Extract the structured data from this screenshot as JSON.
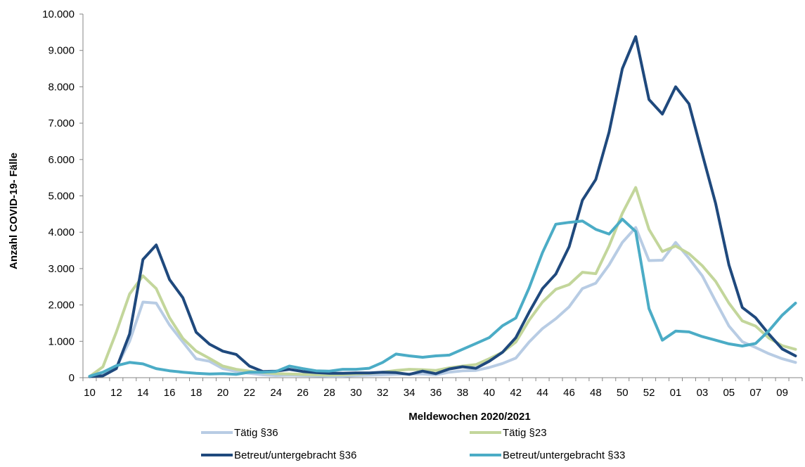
{
  "chart_data": {
    "type": "line",
    "title": "",
    "xlabel": "Meldewochen 2020/2021",
    "ylabel": "Anzahl COVID-19- Fälle",
    "ylim": [
      0,
      10000
    ],
    "y_ticks": [
      "0",
      "1.000",
      "2.000",
      "3.000",
      "4.000",
      "5.000",
      "6.000",
      "7.000",
      "8.000",
      "9.000",
      "10.000"
    ],
    "x_tick_labels": [
      "10",
      "12",
      "14",
      "16",
      "18",
      "20",
      "22",
      "24",
      "26",
      "28",
      "30",
      "32",
      "34",
      "36",
      "38",
      "40",
      "42",
      "44",
      "46",
      "48",
      "50",
      "52",
      "01",
      "03",
      "05",
      "07",
      "09"
    ],
    "x": [
      "10",
      "11",
      "12",
      "13",
      "14",
      "15",
      "16",
      "17",
      "18",
      "19",
      "20",
      "21",
      "22",
      "23",
      "24",
      "25",
      "26",
      "27",
      "28",
      "29",
      "30",
      "31",
      "32",
      "33",
      "34",
      "35",
      "36",
      "37",
      "38",
      "39",
      "40",
      "41",
      "42",
      "43",
      "44",
      "45",
      "46",
      "47",
      "48",
      "49",
      "50",
      "51",
      "52",
      "53",
      "01",
      "02",
      "03",
      "04",
      "05",
      "06",
      "07",
      "08",
      "09",
      "10"
    ],
    "grid": false,
    "legend_position": "bottom",
    "series": [
      {
        "name": "Tätig §36",
        "color": "#b8cce4",
        "values": [
          20,
          120,
          280,
          1000,
          2080,
          2050,
          1450,
          980,
          520,
          450,
          250,
          170,
          120,
          80,
          60,
          70,
          60,
          50,
          40,
          40,
          60,
          70,
          80,
          90,
          100,
          100,
          80,
          150,
          190,
          200,
          280,
          390,
          540,
          980,
          1350,
          1620,
          1950,
          2450,
          2600,
          3100,
          3720,
          4130,
          3220,
          3230,
          3720,
          3280,
          2800,
          2100,
          1420,
          990,
          830,
          660,
          520,
          420
        ]
      },
      {
        "name": "Tätig §23",
        "color": "#c3d69b",
        "values": [
          30,
          300,
          1250,
          2300,
          2800,
          2450,
          1650,
          1080,
          730,
          530,
          320,
          230,
          180,
          140,
          110,
          100,
          90,
          80,
          70,
          80,
          100,
          120,
          150,
          200,
          230,
          220,
          200,
          270,
          320,
          360,
          520,
          700,
          980,
          1580,
          2080,
          2430,
          2560,
          2900,
          2860,
          3620,
          4520,
          5230,
          4080,
          3470,
          3620,
          3410,
          3080,
          2650,
          2050,
          1560,
          1420,
          1090,
          880,
          780
        ]
      },
      {
        "name": "Betreut/untergebracht §36",
        "color": "#1f497d",
        "values": [
          30,
          50,
          250,
          1200,
          3250,
          3650,
          2700,
          2200,
          1250,
          920,
          730,
          640,
          320,
          170,
          180,
          230,
          170,
          140,
          120,
          120,
          130,
          130,
          150,
          140,
          90,
          180,
          110,
          240,
          300,
          260,
          450,
          700,
          1100,
          1800,
          2450,
          2850,
          3600,
          4880,
          5450,
          6750,
          8500,
          9380,
          7650,
          7250,
          8000,
          7530,
          6150,
          4790,
          3100,
          1930,
          1650,
          1200,
          790,
          600
        ]
      },
      {
        "name": "Betreut/untergebracht §33",
        "color": "#4bacc6",
        "values": [
          40,
          150,
          330,
          420,
          380,
          250,
          190,
          150,
          120,
          100,
          110,
          90,
          150,
          150,
          170,
          320,
          250,
          190,
          180,
          230,
          230,
          260,
          420,
          650,
          600,
          560,
          600,
          620,
          780,
          940,
          1100,
          1430,
          1640,
          2470,
          3440,
          4220,
          4270,
          4310,
          4080,
          3950,
          4360,
          4020,
          1900,
          1030,
          1280,
          1260,
          1130,
          1030,
          930,
          870,
          940,
          1290,
          1720,
          2050
        ]
      }
    ]
  }
}
